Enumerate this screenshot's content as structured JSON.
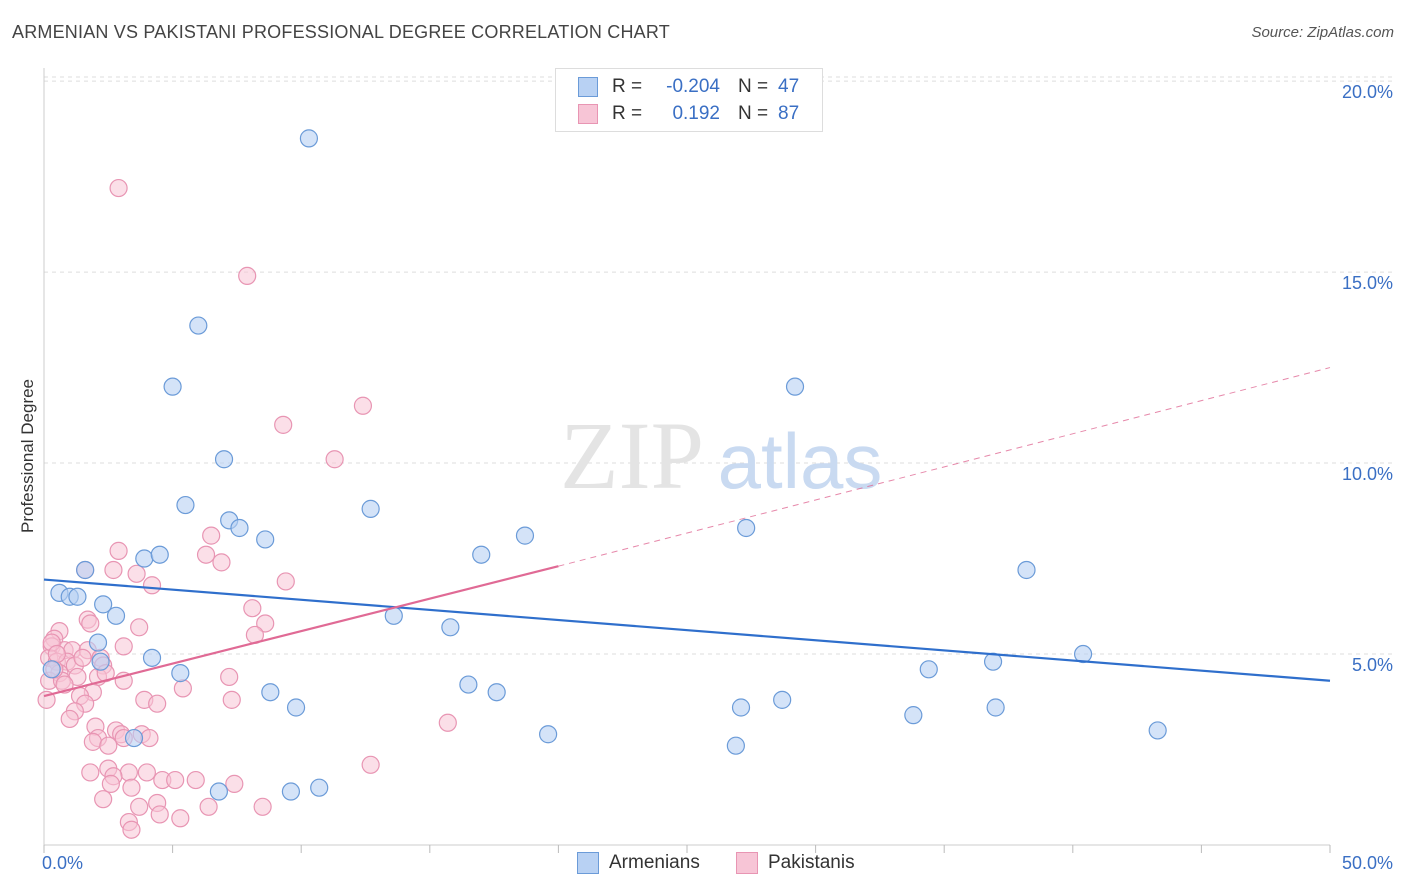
{
  "header": {
    "title": "ARMENIAN VS PAKISTANI PROFESSIONAL DEGREE CORRELATION CHART",
    "source": "Source: ZipAtlas.com"
  },
  "watermark": {
    "zip": "ZIP",
    "atlas": "atlas"
  },
  "legend": {
    "rows": [
      {
        "r_label": "R =",
        "r_value": "-0.204",
        "n_label": "N =",
        "n_value": "47"
      },
      {
        "r_label": "R =",
        "r_value": "0.192",
        "n_label": "N =",
        "n_value": "87"
      }
    ]
  },
  "colors": {
    "armenians_fill": "#b8d1f3",
    "armenians_stroke": "#6b9bd8",
    "armenians_line": "#2f6fcc",
    "pakistanis_fill": "#f7c5d6",
    "pakistanis_stroke": "#e895b3",
    "pakistanis_line": "#e06a95",
    "tick_label": "#3a6fc4",
    "grid": "#dddddd"
  },
  "chart_data": {
    "type": "scatter",
    "title": "ARMENIAN VS PAKISTANI PROFESSIONAL DEGREE CORRELATION CHART",
    "xlabel": "",
    "ylabel": "Professional Degree",
    "xlim": [
      0,
      50
    ],
    "ylim": [
      0,
      20.5
    ],
    "x_tick_labels": [
      "0.0%",
      "50.0%"
    ],
    "y_ticks": [
      5,
      10,
      15,
      20
    ],
    "y_tick_labels": [
      "5.0%",
      "10.0%",
      "15.0%",
      "20.0%"
    ],
    "grid": true,
    "legend_position": "top-center",
    "series": [
      {
        "name": "Armenians",
        "r": -0.204,
        "n": 47,
        "trend": {
          "x": [
            0,
            50
          ],
          "y": [
            6.95,
            4.3
          ]
        },
        "points": [
          [
            10.3,
            18.5
          ],
          [
            6.0,
            13.6
          ],
          [
            5.0,
            12.0
          ],
          [
            29.2,
            12.0
          ],
          [
            7.0,
            10.1
          ],
          [
            5.5,
            8.9
          ],
          [
            12.7,
            8.8
          ],
          [
            7.2,
            8.5
          ],
          [
            7.6,
            8.3
          ],
          [
            8.6,
            8.0
          ],
          [
            18.7,
            8.1
          ],
          [
            27.3,
            8.3
          ],
          [
            3.9,
            7.5
          ],
          [
            4.5,
            7.6
          ],
          [
            17.0,
            7.6
          ],
          [
            1.6,
            7.2
          ],
          [
            38.2,
            7.2
          ],
          [
            0.6,
            6.6
          ],
          [
            1.0,
            6.5
          ],
          [
            1.3,
            6.5
          ],
          [
            2.3,
            6.3
          ],
          [
            2.8,
            6.0
          ],
          [
            13.6,
            6.0
          ],
          [
            15.8,
            5.7
          ],
          [
            2.1,
            5.3
          ],
          [
            4.2,
            4.9
          ],
          [
            2.2,
            4.8
          ],
          [
            40.4,
            5.0
          ],
          [
            36.9,
            4.8
          ],
          [
            34.4,
            4.6
          ],
          [
            5.3,
            4.5
          ],
          [
            16.5,
            4.2
          ],
          [
            8.8,
            4.0
          ],
          [
            17.6,
            4.0
          ],
          [
            28.7,
            3.8
          ],
          [
            9.8,
            3.6
          ],
          [
            27.1,
            3.6
          ],
          [
            37.0,
            3.6
          ],
          [
            33.8,
            3.4
          ],
          [
            19.6,
            2.9
          ],
          [
            3.5,
            2.8
          ],
          [
            43.3,
            3.0
          ],
          [
            26.9,
            2.6
          ],
          [
            6.8,
            1.4
          ],
          [
            9.6,
            1.4
          ],
          [
            10.7,
            1.5
          ],
          [
            0.3,
            4.6
          ]
        ]
      },
      {
        "name": "Pakistanis",
        "r": 0.192,
        "n": 87,
        "trend": {
          "x": [
            0,
            20
          ],
          "y": [
            3.9,
            7.3
          ]
        },
        "trend_extension": {
          "x": [
            20,
            50
          ],
          "y": [
            7.3,
            12.5
          ]
        },
        "points": [
          [
            2.9,
            17.2
          ],
          [
            7.9,
            14.9
          ],
          [
            12.4,
            11.5
          ],
          [
            9.3,
            11.0
          ],
          [
            11.3,
            10.1
          ],
          [
            6.5,
            8.1
          ],
          [
            2.9,
            7.7
          ],
          [
            6.3,
            7.6
          ],
          [
            6.9,
            7.4
          ],
          [
            2.7,
            7.2
          ],
          [
            1.6,
            7.2
          ],
          [
            3.6,
            7.1
          ],
          [
            9.4,
            6.9
          ],
          [
            4.2,
            6.8
          ],
          [
            8.1,
            6.2
          ],
          [
            1.7,
            5.9
          ],
          [
            1.8,
            5.8
          ],
          [
            8.6,
            5.8
          ],
          [
            3.7,
            5.7
          ],
          [
            0.6,
            5.6
          ],
          [
            8.2,
            5.5
          ],
          [
            0.4,
            5.4
          ],
          [
            0.3,
            5.2
          ],
          [
            3.1,
            5.2
          ],
          [
            0.8,
            5.1
          ],
          [
            1.1,
            5.1
          ],
          [
            1.7,
            5.1
          ],
          [
            2.2,
            4.9
          ],
          [
            0.2,
            4.9
          ],
          [
            0.5,
            4.8
          ],
          [
            0.9,
            4.8
          ],
          [
            1.2,
            4.7
          ],
          [
            2.3,
            4.7
          ],
          [
            0.6,
            4.5
          ],
          [
            1.3,
            4.4
          ],
          [
            2.1,
            4.4
          ],
          [
            0.2,
            4.3
          ],
          [
            3.1,
            4.3
          ],
          [
            7.2,
            4.4
          ],
          [
            5.4,
            4.1
          ],
          [
            1.9,
            4.0
          ],
          [
            0.7,
            4.3
          ],
          [
            1.4,
            3.9
          ],
          [
            0.1,
            3.8
          ],
          [
            3.9,
            3.8
          ],
          [
            7.3,
            3.8
          ],
          [
            1.6,
            3.7
          ],
          [
            4.4,
            3.7
          ],
          [
            1.2,
            3.5
          ],
          [
            1.0,
            3.3
          ],
          [
            15.7,
            3.2
          ],
          [
            2.0,
            3.1
          ],
          [
            2.8,
            3.0
          ],
          [
            3.0,
            2.9
          ],
          [
            3.8,
            2.9
          ],
          [
            4.1,
            2.8
          ],
          [
            2.1,
            2.8
          ],
          [
            3.1,
            2.8
          ],
          [
            1.9,
            2.7
          ],
          [
            2.5,
            2.6
          ],
          [
            12.7,
            2.1
          ],
          [
            2.5,
            2.0
          ],
          [
            3.3,
            1.9
          ],
          [
            1.8,
            1.9
          ],
          [
            4.0,
            1.9
          ],
          [
            2.7,
            1.8
          ],
          [
            4.6,
            1.7
          ],
          [
            5.1,
            1.7
          ],
          [
            5.9,
            1.7
          ],
          [
            2.6,
            1.6
          ],
          [
            3.4,
            1.5
          ],
          [
            7.4,
            1.6
          ],
          [
            2.3,
            1.2
          ],
          [
            4.4,
            1.1
          ],
          [
            3.7,
            1.0
          ],
          [
            6.4,
            1.0
          ],
          [
            8.5,
            1.0
          ],
          [
            4.5,
            0.8
          ],
          [
            5.3,
            0.7
          ],
          [
            3.3,
            0.6
          ],
          [
            3.4,
            0.4
          ],
          [
            0.3,
            5.3
          ],
          [
            0.4,
            4.6
          ],
          [
            1.5,
            4.9
          ],
          [
            0.8,
            4.2
          ],
          [
            2.4,
            4.5
          ],
          [
            0.5,
            5.0
          ]
        ]
      }
    ]
  },
  "bottom_legend": {
    "items": [
      "Armenians",
      "Pakistanis"
    ]
  }
}
